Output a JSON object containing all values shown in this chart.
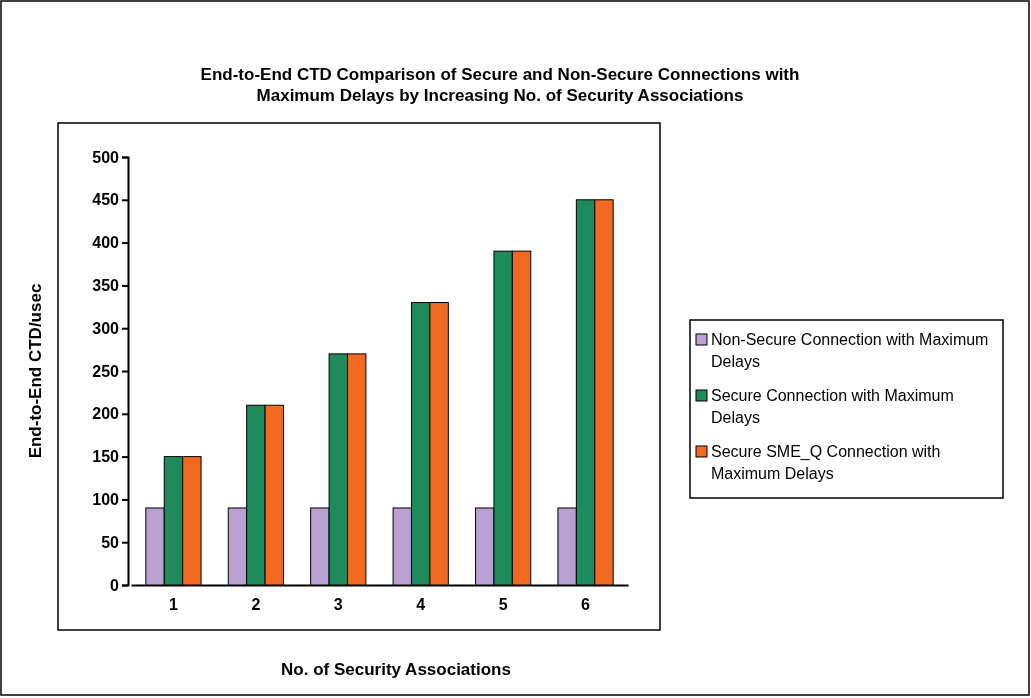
{
  "chart_data": {
    "type": "bar",
    "title": "End-to-End CTD Comparison of Secure and Non-Secure Connections with Maximum Delays by Increasing  No. of Security Associations",
    "xlabel": "No. of Security Associations",
    "ylabel": "End-to-End CTD/usec",
    "categories": [
      "1",
      "2",
      "3",
      "4",
      "5",
      "6"
    ],
    "series": [
      {
        "name": "Non-Secure Connection with Maximum Delays",
        "color": "#b9a0d2",
        "values": [
          90,
          90,
          90,
          90,
          90,
          90
        ]
      },
      {
        "name": "Secure Connection with Maximum Delays",
        "color": "#1f8b5c",
        "values": [
          150,
          210,
          270,
          330,
          390,
          450
        ]
      },
      {
        "name": "Secure SME_Q Connection with Maximum Delays",
        "color": "#f26a22",
        "values": [
          150,
          210,
          270,
          330,
          390,
          450
        ]
      }
    ],
    "ylim": [
      0,
      500
    ],
    "yticks": [
      0,
      50,
      100,
      150,
      200,
      250,
      300,
      350,
      400,
      450,
      500
    ],
    "grid": false,
    "legend": "right"
  }
}
